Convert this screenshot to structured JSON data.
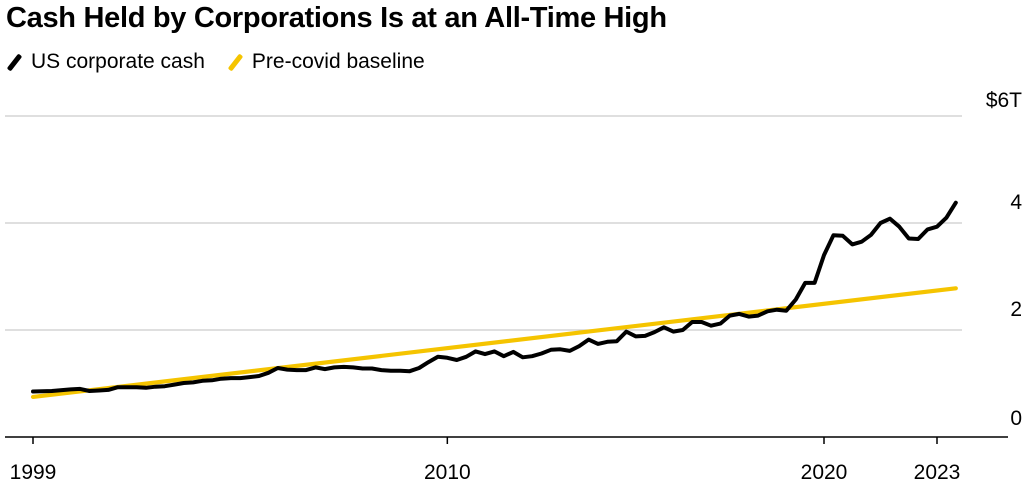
{
  "title": "Cash Held by Corporations Is at an All-Time High",
  "colors": {
    "cash": "#000000",
    "baseline": "#f5c400",
    "grid": "#cccccc",
    "axis": "#000000"
  },
  "chart_data": {
    "type": "line",
    "title": "Cash Held by Corporations Is at an All-Time High",
    "xlabel": "",
    "ylabel": "",
    "xlim": [
      1998.9,
      2023.1
    ],
    "ylim": [
      0,
      6
    ],
    "grid": true,
    "legend_position": "top-left",
    "x_ticks": [
      {
        "value": 1999,
        "label": "1999"
      },
      {
        "value": 2010,
        "label": "2010"
      },
      {
        "value": 2020,
        "label": "2020"
      },
      {
        "value": 2023,
        "label": "2023"
      }
    ],
    "y_ticks": [
      {
        "value": 0,
        "label": "0"
      },
      {
        "value": 2,
        "label": "2"
      },
      {
        "value": 4,
        "label": "4"
      },
      {
        "value": 6,
        "label": "$6T"
      }
    ],
    "series": [
      {
        "name": "US corporate cash",
        "color": "#000000",
        "points": [
          [
            1999.0,
            0.85
          ],
          [
            1999.5,
            0.86
          ],
          [
            2000.0,
            0.89
          ],
          [
            2000.25,
            0.9
          ],
          [
            2000.5,
            0.86
          ],
          [
            2000.75,
            0.87
          ],
          [
            2001.0,
            0.88
          ],
          [
            2001.25,
            0.93
          ],
          [
            2001.5,
            0.93
          ],
          [
            2001.75,
            0.93
          ],
          [
            2002.0,
            0.92
          ],
          [
            2002.25,
            0.94
          ],
          [
            2002.5,
            0.95
          ],
          [
            2002.75,
            0.98
          ],
          [
            2003.0,
            1.01
          ],
          [
            2003.25,
            1.02
          ],
          [
            2003.5,
            1.05
          ],
          [
            2003.75,
            1.06
          ],
          [
            2004.0,
            1.09
          ],
          [
            2004.25,
            1.1
          ],
          [
            2004.5,
            1.1
          ],
          [
            2004.75,
            1.12
          ],
          [
            2005.0,
            1.14
          ],
          [
            2005.25,
            1.2
          ],
          [
            2005.5,
            1.29
          ],
          [
            2005.75,
            1.26
          ],
          [
            2006.0,
            1.25
          ],
          [
            2006.25,
            1.25
          ],
          [
            2006.5,
            1.3
          ],
          [
            2006.75,
            1.27
          ],
          [
            2007.0,
            1.3
          ],
          [
            2007.25,
            1.31
          ],
          [
            2007.5,
            1.3
          ],
          [
            2007.75,
            1.28
          ],
          [
            2008.0,
            1.28
          ],
          [
            2008.25,
            1.25
          ],
          [
            2008.5,
            1.24
          ],
          [
            2008.75,
            1.24
          ],
          [
            2009.0,
            1.23
          ],
          [
            2009.25,
            1.29
          ],
          [
            2009.5,
            1.4
          ],
          [
            2009.75,
            1.5
          ],
          [
            2010.0,
            1.48
          ],
          [
            2010.25,
            1.44
          ],
          [
            2010.5,
            1.5
          ],
          [
            2010.75,
            1.6
          ],
          [
            2011.0,
            1.55
          ],
          [
            2011.25,
            1.6
          ],
          [
            2011.5,
            1.51
          ],
          [
            2011.75,
            1.59
          ],
          [
            2012.0,
            1.49
          ],
          [
            2012.25,
            1.51
          ],
          [
            2012.5,
            1.56
          ],
          [
            2012.75,
            1.63
          ],
          [
            2013.0,
            1.64
          ],
          [
            2013.25,
            1.61
          ],
          [
            2013.5,
            1.7
          ],
          [
            2013.75,
            1.82
          ],
          [
            2014.0,
            1.74
          ],
          [
            2014.25,
            1.78
          ],
          [
            2014.5,
            1.79
          ],
          [
            2014.75,
            1.97
          ],
          [
            2015.0,
            1.88
          ],
          [
            2015.25,
            1.89
          ],
          [
            2015.5,
            1.96
          ],
          [
            2015.75,
            2.05
          ],
          [
            2016.0,
            1.97
          ],
          [
            2016.25,
            2.0
          ],
          [
            2016.5,
            2.15
          ],
          [
            2016.75,
            2.15
          ],
          [
            2017.0,
            2.08
          ],
          [
            2017.25,
            2.12
          ],
          [
            2017.5,
            2.27
          ],
          [
            2017.75,
            2.3
          ],
          [
            2018.0,
            2.25
          ],
          [
            2018.25,
            2.27
          ],
          [
            2018.5,
            2.35
          ],
          [
            2018.75,
            2.38
          ],
          [
            2019.0,
            2.36
          ],
          [
            2019.25,
            2.57
          ],
          [
            2019.5,
            2.88
          ],
          [
            2019.75,
            2.88
          ],
          [
            2020.0,
            3.4
          ],
          [
            2020.25,
            3.77
          ],
          [
            2020.5,
            3.76
          ],
          [
            2020.75,
            3.6
          ],
          [
            2021.0,
            3.65
          ],
          [
            2021.25,
            3.78
          ],
          [
            2021.5,
            4.0
          ],
          [
            2021.75,
            4.08
          ],
          [
            2022.0,
            3.93
          ],
          [
            2022.25,
            3.71
          ],
          [
            2022.5,
            3.7
          ],
          [
            2022.75,
            3.88
          ],
          [
            2023.0,
            3.93
          ],
          [
            2023.25,
            4.1
          ],
          [
            2023.5,
            4.38
          ]
        ]
      },
      {
        "name": "Pre-covid baseline",
        "color": "#f5c400",
        "points": [
          [
            1999.0,
            0.75
          ],
          [
            2023.5,
            2.78
          ]
        ]
      }
    ]
  }
}
